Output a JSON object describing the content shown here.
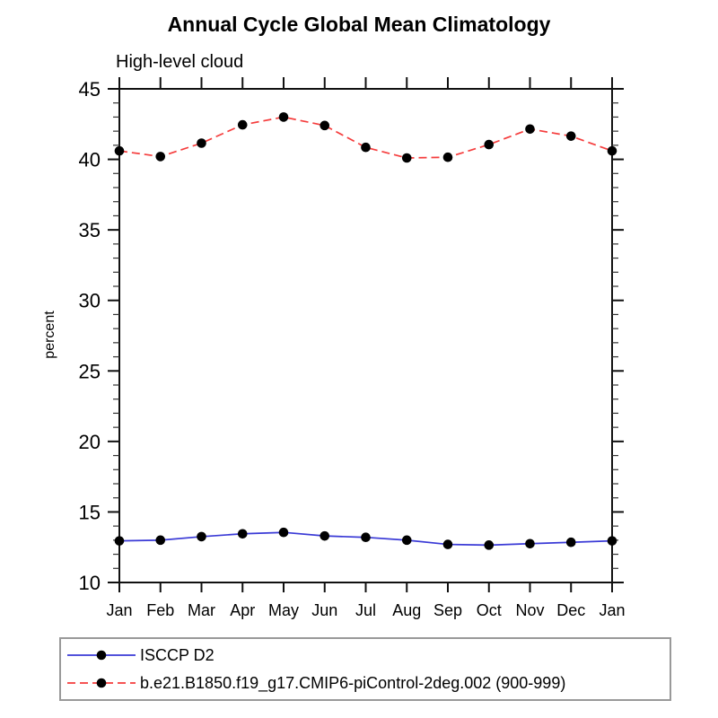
{
  "chart_data": {
    "type": "line",
    "title": "Annual Cycle Global Mean Climatology",
    "subtitle": "High-level cloud",
    "ylabel": "percent",
    "xlabel": "",
    "ylim": [
      10,
      45
    ],
    "yticks": [
      10,
      15,
      20,
      25,
      30,
      35,
      40,
      45
    ],
    "ytick_minor_step": 1,
    "grid": "off",
    "legend_position": "bottom-left-box",
    "categories": [
      "Jan",
      "Feb",
      "Mar",
      "Apr",
      "May",
      "Jun",
      "Jul",
      "Aug",
      "Sep",
      "Oct",
      "Nov",
      "Dec",
      "Jan"
    ],
    "series": [
      {
        "name": "ISCCP D2",
        "style": "solid",
        "color": "#3a3ad6",
        "values": [
          12.95,
          13.0,
          13.25,
          13.45,
          13.55,
          13.3,
          13.2,
          13.0,
          12.7,
          12.65,
          12.75,
          12.85,
          12.95
        ]
      },
      {
        "name": "b.e21.B1850.f19_g17.CMIP6-piControl-2deg.002 (900-999)",
        "style": "dashed",
        "color": "#f53d3d",
        "values": [
          40.6,
          40.2,
          41.15,
          42.45,
          43.0,
          42.4,
          40.85,
          40.1,
          40.15,
          41.05,
          42.15,
          41.65,
          40.6
        ]
      }
    ],
    "marker": {
      "shape": "circle",
      "color": "#000000",
      "radius": 5.3
    },
    "colors": {
      "axis": "#111111",
      "minor_tick": "#333333",
      "text": "#000000",
      "legend_border": "#999999",
      "background": "#ffffff"
    }
  }
}
